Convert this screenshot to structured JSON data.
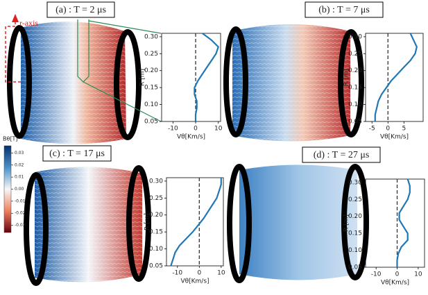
{
  "panels": [
    {
      "label": "(a) : T = 2 μs"
    },
    {
      "label": "(b) : T = 7 μs"
    },
    {
      "label": "(c) : T = 17 μs"
    },
    {
      "label": "(d) : T = 27 μs"
    }
  ],
  "annotation": "r-axis",
  "colorbar": {
    "label": "Bθ[T]",
    "lim": [
      -0.036,
      0.036
    ],
    "ticks": [
      0.03,
      0.02,
      0.01,
      {
        "value": 0,
        "label": "0.00"
      },
      -0.01,
      -0.02,
      -0.03
    ]
  },
  "chart_data": [
    {
      "type": "line",
      "xlabel": "Vθ[Km/s]",
      "ylabel": "R [m]",
      "color": "#1f77b4",
      "vline": 0,
      "y": [
        0.05,
        0.07,
        0.09,
        0.11,
        0.13,
        0.15,
        0.17,
        0.19,
        0.21,
        0.23,
        0.25,
        0.27,
        0.29,
        0.31
      ],
      "x": [
        0,
        0,
        0.5,
        0.5,
        -0.5,
        -0.5,
        1,
        3,
        5,
        7,
        9,
        10,
        7,
        3
      ],
      "xlim": [
        -15,
        11
      ],
      "xticks": [
        -10,
        0,
        10
      ],
      "ylim": [
        0.05,
        0.31
      ],
      "yticks": [
        0.05,
        {
          "value": 0.1,
          "label": "0.10"
        },
        0.15,
        {
          "value": 0.2,
          "label": "0.20"
        },
        0.25,
        {
          "value": 0.3,
          "label": "0.30"
        }
      ]
    },
    {
      "type": "line",
      "xlabel": "Vθ[Km/s]",
      "ylabel": "R [m]",
      "color": "#1f77b4",
      "vline": 0,
      "y": [
        0.05,
        0.07,
        0.09,
        0.11,
        0.13,
        0.15,
        0.17,
        0.19,
        0.21,
        0.23,
        0.25,
        0.27,
        0.29,
        0.31
      ],
      "x": [
        -4,
        -4,
        -3.5,
        -3,
        -2,
        -0.5,
        1,
        3,
        5,
        7,
        8.5,
        9,
        8,
        7
      ],
      "xlim": [
        -7,
        11
      ],
      "xticks": [
        -5,
        0,
        5
      ],
      "ylim": [
        0.05,
        0.31
      ],
      "yticks": [
        0.05,
        {
          "value": 0.1,
          "label": "0.10"
        },
        0.15,
        {
          "value": 0.2,
          "label": "0.20"
        },
        0.25,
        {
          "value": 0.3,
          "label": "0.30"
        }
      ]
    },
    {
      "type": "line",
      "xlabel": "Vθ[Km/s]",
      "ylabel": "R [m]",
      "color": "#1f77b4",
      "vline": 0,
      "y": [
        0.05,
        0.07,
        0.09,
        0.11,
        0.13,
        0.15,
        0.17,
        0.19,
        0.21,
        0.23,
        0.25,
        0.27,
        0.29,
        0.31
      ],
      "x": [
        -13,
        -12,
        -11,
        -9,
        -6,
        -3,
        -0.5,
        2,
        4,
        6,
        8,
        9,
        10,
        10
      ],
      "xlim": [
        -15,
        11
      ],
      "xticks": [
        -10,
        0,
        10
      ],
      "ylim": [
        0.05,
        0.31
      ],
      "yticks": [
        0.05,
        {
          "value": 0.1,
          "label": "0.10"
        },
        0.15,
        {
          "value": 0.2,
          "label": "0.20"
        },
        0.25,
        {
          "value": 0.3,
          "label": "0.30"
        }
      ]
    },
    {
      "type": "line",
      "xlabel": "Vθ[Km/s]",
      "ylabel": "R [m]",
      "color": "#1f77b4",
      "vline": 0,
      "y": [
        0.05,
        0.07,
        0.09,
        0.11,
        0.13,
        0.15,
        0.17,
        0.19,
        0.21,
        0.23,
        0.25,
        0.27,
        0.29,
        0.31
      ],
      "x": [
        0,
        0,
        0.5,
        2,
        5,
        5,
        3,
        1,
        1,
        3,
        5,
        6,
        6,
        5
      ],
      "xlim": [
        -15,
        13
      ],
      "xticks": [
        -10,
        0,
        10
      ],
      "ylim": [
        0.05,
        0.31
      ],
      "yticks": [
        0.05,
        {
          "value": 0.1,
          "label": "0.10"
        },
        0.15,
        {
          "value": 0.2,
          "label": "0.20"
        },
        0.25,
        {
          "value": 0.3,
          "label": "0.30"
        }
      ]
    }
  ]
}
